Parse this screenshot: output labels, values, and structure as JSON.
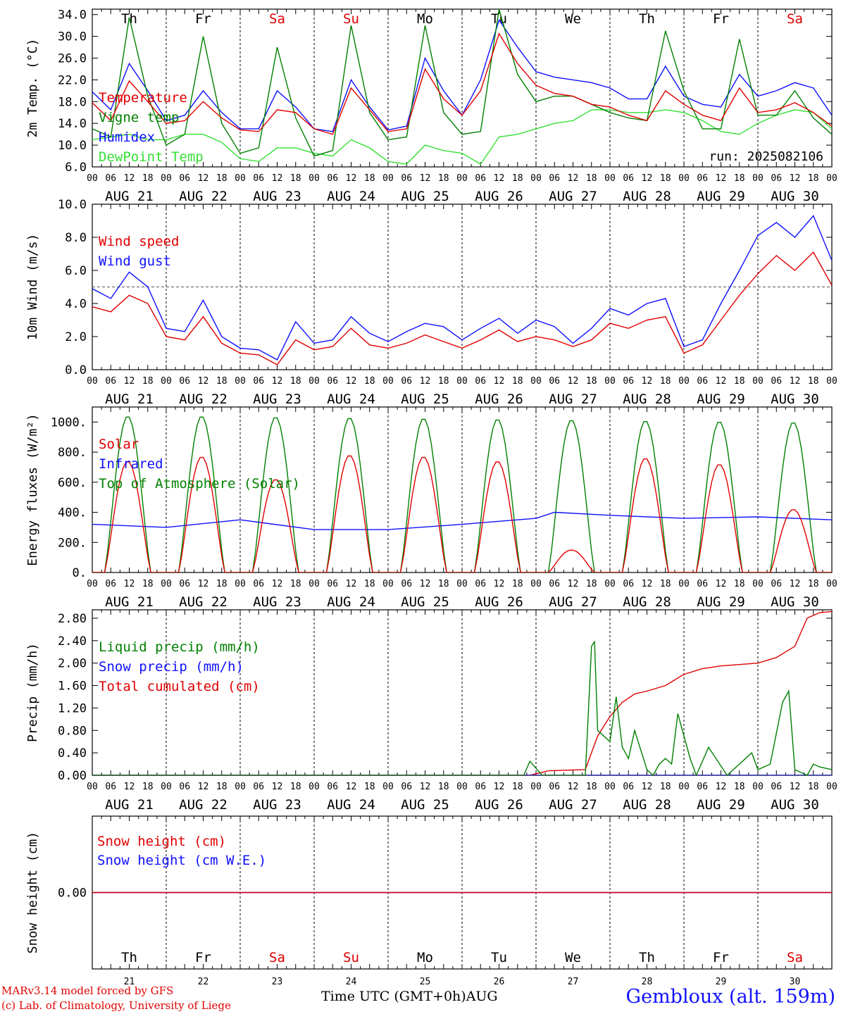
{
  "days": [
    {
      "name": "Th",
      "date": "AUG 21",
      "num": "21",
      "weekend": false
    },
    {
      "name": "Fr",
      "date": "AUG 22",
      "num": "22",
      "weekend": false
    },
    {
      "name": "Sa",
      "date": "AUG 23",
      "num": "23",
      "weekend": true
    },
    {
      "name": "Su",
      "date": "AUG 24",
      "num": "24",
      "weekend": true
    },
    {
      "name": "Mo",
      "date": "AUG 25",
      "num": "25",
      "weekend": false
    },
    {
      "name": "Tu",
      "date": "AUG 26",
      "num": "26",
      "weekend": false
    },
    {
      "name": "We",
      "date": "AUG 27",
      "num": "27",
      "weekend": false
    },
    {
      "name": "Th",
      "date": "AUG 28",
      "num": "28",
      "weekend": false
    },
    {
      "name": "Fr",
      "date": "AUG 29",
      "num": "29",
      "weekend": false
    },
    {
      "name": "Sa",
      "date": "AUG 30",
      "num": "30",
      "weekend": true
    }
  ],
  "hour_labels": [
    "00",
    "06",
    "12",
    "18"
  ],
  "footer": {
    "credit_line1": "MARv3.14 model forced by GFS",
    "credit_line2": "(c) Lab. of Climatology, University of Liege",
    "x_title": "Time UTC (GMT+0h)AUG",
    "station": "Gembloux (alt. 159m)"
  },
  "colors": {
    "red": "#e00000",
    "blue": "#1010ff",
    "green": "#008000",
    "lightgreen": "#33e033",
    "weekend": "#e00000"
  },
  "chart_data": [
    {
      "type": "line",
      "ylabel": "2m Temp. (°C)",
      "ylim": [
        6,
        35
      ],
      "yticks": [
        6,
        10,
        14,
        18,
        22,
        26,
        30,
        34
      ],
      "ytick_labels": [
        "6.0",
        "10.0",
        "14.0",
        "18.0",
        "22.0",
        "26.0",
        "30.0",
        "34.0"
      ],
      "annotation": "run: 2025082106",
      "x_unit": "hours since AUG 21 00 UTC",
      "series": [
        {
          "name": "Temperature",
          "color": "red",
          "x": [
            0,
            6,
            12,
            18,
            24,
            30,
            36,
            42,
            48,
            54,
            60,
            66,
            72,
            78,
            84,
            90,
            96,
            102,
            108,
            114,
            120,
            126,
            132,
            138,
            144,
            150,
            156,
            162,
            168,
            174,
            180,
            186,
            192,
            198,
            204,
            210,
            216,
            222,
            228,
            234,
            240
          ],
          "y": [
            17.8,
            14.5,
            21.8,
            18.0,
            14.0,
            14.5,
            18.0,
            15.0,
            12.8,
            12.5,
            16.5,
            16.0,
            13.0,
            12.0,
            20.5,
            16.5,
            12.5,
            13.0,
            24.0,
            18.5,
            15.5,
            20.0,
            30.5,
            25.0,
            21.0,
            19.5,
            19.0,
            17.5,
            17.0,
            15.5,
            14.5,
            20.0,
            17.5,
            15.5,
            14.5,
            20.5,
            16.0,
            16.5,
            17.8,
            16.0,
            13.5
          ]
        },
        {
          "name": "Vigne temp",
          "color": "green",
          "x": [
            0,
            6,
            12,
            18,
            24,
            30,
            36,
            42,
            48,
            54,
            60,
            66,
            72,
            78,
            84,
            90,
            96,
            102,
            108,
            114,
            120,
            126,
            132,
            138,
            144,
            150,
            156,
            162,
            168,
            174,
            180,
            186,
            192,
            198,
            204,
            210,
            216,
            222,
            228,
            234,
            240
          ],
          "y": [
            13.0,
            11.5,
            33.5,
            19.0,
            10.0,
            12.0,
            30.0,
            14.0,
            8.5,
            9.5,
            28.0,
            15.0,
            8.0,
            9.0,
            32.0,
            16.0,
            11.0,
            11.5,
            32.0,
            16.0,
            12.0,
            12.5,
            35.0,
            23.0,
            18.0,
            19.0,
            19.0,
            17.5,
            16.0,
            15.0,
            14.5,
            31.0,
            20.0,
            13.0,
            13.0,
            29.5,
            15.5,
            15.5,
            20.0,
            15.0,
            12.0
          ]
        },
        {
          "name": "Humidex",
          "color": "blue",
          "x": [
            0,
            6,
            12,
            18,
            24,
            30,
            36,
            42,
            48,
            54,
            60,
            66,
            72,
            78,
            84,
            90,
            96,
            102,
            108,
            114,
            120,
            126,
            132,
            138,
            144,
            150,
            156,
            162,
            168,
            174,
            180,
            186,
            192,
            198,
            204,
            210,
            216,
            222,
            228,
            234,
            240
          ],
          "y": [
            19.8,
            16.5,
            25.0,
            20.0,
            14.5,
            15.5,
            20.0,
            16.0,
            13.0,
            13.0,
            20.0,
            17.0,
            13.0,
            12.5,
            22.0,
            17.0,
            12.8,
            13.5,
            26.0,
            20.0,
            15.5,
            22.0,
            33.0,
            28.0,
            23.5,
            22.5,
            22.0,
            21.5,
            20.5,
            18.5,
            18.5,
            24.5,
            19.0,
            17.5,
            17.0,
            23.0,
            19.0,
            20.0,
            21.5,
            20.5,
            15.5
          ]
        },
        {
          "name": "DewPoint Temp",
          "color": "lightgreen",
          "x": [
            0,
            6,
            12,
            18,
            24,
            30,
            36,
            42,
            48,
            54,
            60,
            66,
            72,
            78,
            84,
            90,
            96,
            102,
            108,
            114,
            120,
            126,
            132,
            138,
            144,
            150,
            156,
            162,
            168,
            174,
            180,
            186,
            192,
            198,
            204,
            210,
            216,
            222,
            228,
            234,
            240
          ],
          "y": [
            11.0,
            11.5,
            12.0,
            11.0,
            11.0,
            12.0,
            12.0,
            10.5,
            7.5,
            7.0,
            9.5,
            9.5,
            8.5,
            8.0,
            11.0,
            9.5,
            7.0,
            6.5,
            10.0,
            9.0,
            8.5,
            6.5,
            11.5,
            12.0,
            13.0,
            14.0,
            14.5,
            16.5,
            16.5,
            16.0,
            16.0,
            16.5,
            16.0,
            14.5,
            12.5,
            12.0,
            14.0,
            15.5,
            16.5,
            16.0,
            13.0
          ]
        }
      ]
    },
    {
      "type": "line",
      "ylabel": "10m Wind (m/s)",
      "ylim": [
        0,
        10
      ],
      "yticks": [
        0,
        2,
        4,
        6,
        8,
        10
      ],
      "ytick_labels": [
        "0.0",
        "2.0",
        "4.0",
        "6.0",
        "8.0",
        "10.0"
      ],
      "reference_line": 5,
      "series": [
        {
          "name": "Wind speed",
          "color": "red",
          "x": [
            0,
            6,
            12,
            18,
            24,
            30,
            36,
            42,
            48,
            54,
            60,
            66,
            72,
            78,
            84,
            90,
            96,
            102,
            108,
            114,
            120,
            126,
            132,
            138,
            144,
            150,
            156,
            162,
            168,
            174,
            180,
            186,
            192,
            198,
            204,
            210,
            216,
            222,
            228,
            234,
            240
          ],
          "y": [
            3.8,
            3.5,
            4.5,
            4.0,
            2.0,
            1.8,
            3.2,
            1.6,
            1.0,
            0.9,
            0.3,
            1.8,
            1.2,
            1.4,
            2.5,
            1.5,
            1.3,
            1.6,
            2.1,
            1.7,
            1.3,
            1.8,
            2.4,
            1.7,
            2.0,
            1.8,
            1.4,
            1.8,
            2.8,
            2.5,
            3.0,
            3.2,
            1.0,
            1.5,
            3.0,
            4.5,
            5.8,
            6.9,
            6.0,
            7.1,
            5.1
          ]
        },
        {
          "name": "Wind gust",
          "color": "blue",
          "x": [
            0,
            6,
            12,
            18,
            24,
            30,
            36,
            42,
            48,
            54,
            60,
            66,
            72,
            78,
            84,
            90,
            96,
            102,
            108,
            114,
            120,
            126,
            132,
            138,
            144,
            150,
            156,
            162,
            168,
            174,
            180,
            186,
            192,
            198,
            204,
            210,
            216,
            222,
            228,
            234,
            240
          ],
          "y": [
            4.9,
            4.3,
            5.9,
            5.0,
            2.5,
            2.3,
            4.2,
            2.0,
            1.3,
            1.2,
            0.6,
            2.9,
            1.6,
            1.8,
            3.2,
            2.2,
            1.7,
            2.3,
            2.8,
            2.6,
            1.8,
            2.5,
            3.1,
            2.2,
            3.0,
            2.6,
            1.6,
            2.5,
            3.7,
            3.3,
            4.0,
            4.3,
            1.4,
            1.8,
            4.0,
            6.0,
            8.1,
            8.9,
            8.0,
            9.3,
            6.6
          ]
        }
      ]
    },
    {
      "type": "line",
      "ylabel": "Energy fluxes (W/m²)",
      "ylim": [
        0,
        1100
      ],
      "yticks": [
        0,
        200,
        400,
        600,
        800,
        1000
      ],
      "ytick_labels": [
        "0.",
        "200.",
        "400.",
        "600.",
        "800.",
        "1000."
      ],
      "series": [
        {
          "name": "Solar",
          "color": "red",
          "daily_peaks": [
            740,
            770,
            620,
            780,
            770,
            740,
            150,
            760,
            720,
            420
          ]
        },
        {
          "name": "Infrared",
          "color": "blue",
          "x": [
            0,
            24,
            48,
            72,
            96,
            120,
            144,
            150,
            168,
            192,
            216,
            240
          ],
          "y": [
            320,
            300,
            350,
            285,
            285,
            320,
            360,
            400,
            380,
            360,
            370,
            350
          ]
        },
        {
          "name": "Top of Atmosphere (Solar)",
          "color": "green",
          "daily_peaks": [
            1040,
            1040,
            1035,
            1030,
            1025,
            1020,
            1015,
            1010,
            1005,
            1000
          ]
        }
      ]
    },
    {
      "type": "line",
      "ylabel": "Precip (mm/h)",
      "ylim": [
        0,
        2.95
      ],
      "yticks": [
        0,
        0.4,
        0.8,
        1.2,
        1.6,
        2.0,
        2.4,
        2.8
      ],
      "ytick_labels": [
        "0.00",
        "0.40",
        "0.80",
        "1.20",
        "1.60",
        "2.00",
        "2.40",
        "2.80"
      ],
      "series": [
        {
          "name": "Liquid precip (mm/h)",
          "color": "green",
          "x": [
            0,
            140,
            142,
            146,
            150,
            160,
            162,
            163,
            164,
            168,
            170,
            172,
            174,
            176,
            180,
            182,
            184,
            186,
            188,
            190,
            194,
            196,
            200,
            206,
            214,
            216,
            220,
            224,
            226,
            228,
            232,
            234,
            236,
            240
          ],
          "y": [
            0,
            0,
            0.25,
            0,
            0,
            0,
            2.3,
            2.38,
            0.8,
            0.6,
            1.4,
            0.5,
            0.3,
            0.8,
            0.1,
            0,
            0.2,
            0.3,
            0.2,
            1.1,
            0.3,
            0,
            0.5,
            0,
            0.4,
            0.1,
            0.2,
            1.3,
            1.5,
            0.1,
            0,
            0.2,
            0.15,
            0.1
          ]
        },
        {
          "name": "Snow precip (mm/h)",
          "color": "blue",
          "x": [
            0,
            240
          ],
          "y": [
            0,
            0
          ]
        },
        {
          "name": "Total cumulated (cm)",
          "color": "red",
          "x": [
            0,
            142,
            148,
            160,
            164,
            168,
            172,
            176,
            180,
            186,
            192,
            198,
            204,
            216,
            222,
            228,
            232,
            236,
            240
          ],
          "y": [
            0,
            0,
            0.08,
            0.1,
            0.7,
            1.05,
            1.3,
            1.45,
            1.5,
            1.6,
            1.8,
            1.9,
            1.95,
            2.0,
            2.1,
            2.3,
            2.8,
            2.9,
            2.92
          ]
        }
      ]
    },
    {
      "type": "line",
      "ylabel": "Snow height (cm)",
      "ylim": [
        -1,
        1
      ],
      "yticks": [
        0
      ],
      "ytick_labels": [
        "0.00"
      ],
      "series": [
        {
          "name": "Snow height (cm)",
          "color": "red",
          "x": [
            0,
            240
          ],
          "y": [
            0,
            0
          ]
        },
        {
          "name": "Snow height (cm W.E.)",
          "color": "blue",
          "x": [
            0,
            240
          ],
          "y": [
            0,
            0
          ]
        }
      ]
    }
  ]
}
